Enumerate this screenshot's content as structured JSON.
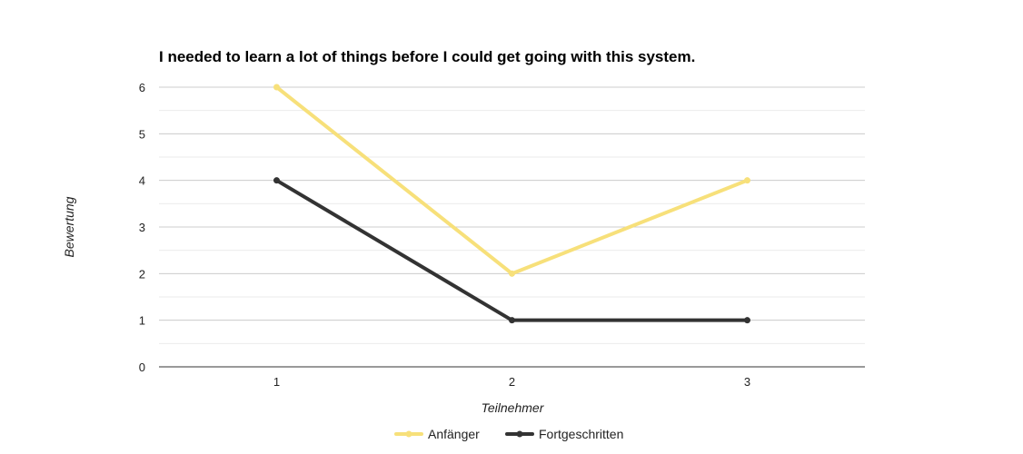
{
  "chart_data": {
    "type": "line",
    "title": "I needed to learn a lot of things before I could get going with this system.",
    "xlabel": "Teilnehmer",
    "ylabel": "Bewertung",
    "categories": [
      "1",
      "2",
      "3"
    ],
    "yticks": [
      "0",
      "1",
      "2",
      "3",
      "4",
      "5",
      "6"
    ],
    "ylim": [
      0,
      6
    ],
    "grid": true,
    "legend_position": "bottom",
    "series": [
      {
        "name": "Anfänger",
        "values": [
          6,
          2,
          4
        ],
        "color": "#f7e07a"
      },
      {
        "name": "Fortgeschritten",
        "values": [
          4,
          1,
          1
        ],
        "color": "#333333"
      }
    ]
  }
}
